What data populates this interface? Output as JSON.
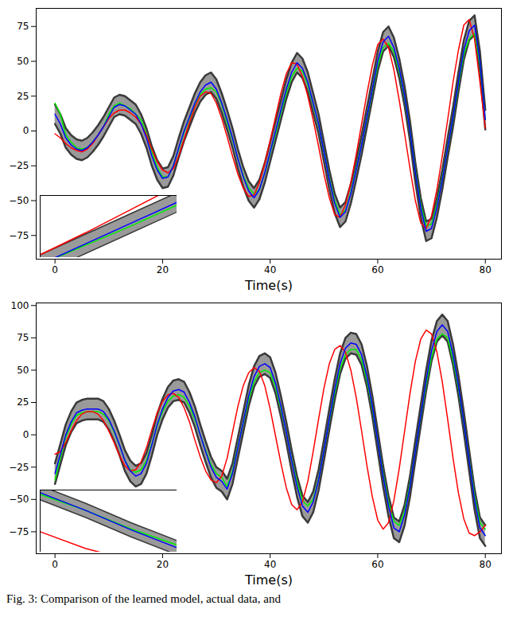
{
  "caption": "Fig. 3: Comparison of the learned model, actual data, and",
  "chart_data": [
    {
      "type": "line",
      "xlabel": "Time(s)",
      "xlim": [
        -3.5,
        83
      ],
      "xticks": [
        0,
        20,
        40,
        60,
        80
      ],
      "ylim": [
        -92,
        88
      ],
      "yticks": [
        -75,
        -50,
        -25,
        0,
        25,
        50,
        75
      ],
      "grid": false,
      "inset": {
        "xlim": [
          39,
          42
        ],
        "ylim": [
          -25,
          20
        ],
        "tick_labels": false
      },
      "x": [
        0,
        1,
        2,
        3,
        4,
        5,
        6,
        7,
        8,
        9,
        10,
        11,
        12,
        13,
        14,
        15,
        16,
        17,
        18,
        19,
        20,
        21,
        22,
        23,
        24,
        25,
        26,
        27,
        28,
        29,
        30,
        31,
        32,
        33,
        34,
        35,
        36,
        37,
        38,
        39,
        40,
        41,
        42,
        43,
        44,
        45,
        46,
        47,
        48,
        49,
        50,
        51,
        52,
        53,
        54,
        55,
        56,
        57,
        58,
        59,
        60,
        61,
        62,
        63,
        64,
        65,
        66,
        67,
        68,
        69,
        70,
        71,
        72,
        73,
        74,
        75,
        76,
        77,
        78,
        79,
        80
      ],
      "series": [
        {
          "type": "band",
          "color": "#9a9a9a",
          "lower": [
            5,
            -2,
            -12,
            -17,
            -20,
            -21,
            -19,
            -15,
            -10,
            -4,
            3,
            10,
            12,
            11,
            8,
            5,
            -2,
            -12,
            -25,
            -35,
            -41,
            -40,
            -32,
            -19,
            -7,
            3,
            13,
            21,
            26,
            28,
            23,
            13,
            1,
            -12,
            -27,
            -40,
            -50,
            -55,
            -49,
            -37,
            -22,
            -7,
            8,
            23,
            35,
            42,
            38,
            28,
            13,
            -2,
            -22,
            -42,
            -59,
            -69,
            -65,
            -52,
            -35,
            -17,
            3,
            23,
            43,
            57,
            61,
            53,
            38,
            18,
            -7,
            -37,
            -62,
            -79,
            -77,
            -62,
            -42,
            -19,
            3,
            28,
            51,
            65,
            69,
            43,
            1
          ],
          "upper": [
            19,
            12,
            2,
            -3,
            -6,
            -7,
            -5,
            -1,
            4,
            10,
            17,
            24,
            26,
            25,
            22,
            19,
            12,
            2,
            -11,
            -21,
            -27,
            -26,
            -18,
            -5,
            7,
            17,
            27,
            35,
            40,
            42,
            37,
            27,
            15,
            2,
            -13,
            -26,
            -36,
            -41,
            -35,
            -23,
            -8,
            7,
            22,
            37,
            49,
            56,
            52,
            42,
            27,
            12,
            -8,
            -28,
            -45,
            -55,
            -51,
            -38,
            -21,
            -3,
            17,
            37,
            57,
            71,
            75,
            67,
            52,
            32,
            7,
            -23,
            -48,
            -65,
            -63,
            -48,
            -28,
            -5,
            17,
            42,
            65,
            79,
            83,
            57,
            15
          ]
        },
        {
          "type": "line",
          "color": "#00ee00",
          "values": [
            20,
            12,
            -3,
            -8,
            -12,
            -13,
            -12,
            -8,
            -3,
            3,
            12,
            18,
            20,
            18,
            16,
            12,
            8,
            -2,
            -15,
            -26,
            -33,
            -33,
            -25,
            -13,
            -1,
            9,
            18,
            26,
            30,
            31,
            28,
            19,
            6,
            -6,
            -20,
            -32,
            -41,
            -45,
            -42,
            -30,
            -16,
            -2,
            13,
            27,
            39,
            45,
            43,
            33,
            19,
            4,
            -15,
            -34,
            -50,
            -60,
            -57,
            -44,
            -27,
            -10,
            9,
            29,
            47,
            60,
            63,
            57,
            43,
            24,
            0,
            -29,
            -53,
            -68,
            -67,
            -53,
            -34,
            -12,
            9,
            33,
            55,
            66,
            70,
            48,
            8
          ]
        },
        {
          "type": "line",
          "color": "#ff0000",
          "values": [
            -2,
            -5,
            -9,
            -12,
            -14,
            -15,
            -13,
            -9,
            -3,
            3,
            9,
            13,
            15,
            15,
            13,
            10,
            5,
            -3,
            -13,
            -22,
            -28,
            -30,
            -27,
            -18,
            -6,
            6,
            17,
            25,
            28,
            27,
            20,
            9,
            -4,
            -18,
            -31,
            -41,
            -47,
            -46,
            -37,
            -23,
            -7,
            10,
            27,
            41,
            49,
            48,
            39,
            25,
            8,
            -11,
            -31,
            -48,
            -60,
            -62,
            -53,
            -37,
            -17,
            5,
            27,
            47,
            62,
            66,
            60,
            44,
            22,
            -2,
            -27,
            -50,
            -66,
            -70,
            -61,
            -42,
            -18,
            8,
            35,
            58,
            76,
            80,
            66,
            35,
            2
          ]
        },
        {
          "type": "line",
          "color": "#0000ff",
          "values": [
            12,
            5,
            -5,
            -10,
            -13,
            -14,
            -12,
            -8,
            -3,
            3,
            10,
            17,
            19,
            18,
            15,
            12,
            5,
            -5,
            -18,
            -28,
            -34,
            -33,
            -25,
            -12,
            0,
            10,
            20,
            28,
            33,
            35,
            30,
            20,
            8,
            -5,
            -20,
            -33,
            -43,
            -48,
            -42,
            -30,
            -15,
            0,
            15,
            30,
            42,
            49,
            45,
            35,
            20,
            5,
            -15,
            -35,
            -52,
            -62,
            -58,
            -45,
            -28,
            -10,
            10,
            30,
            50,
            64,
            68,
            60,
            45,
            25,
            0,
            -30,
            -55,
            -72,
            -70,
            -55,
            -35,
            -12,
            10,
            35,
            58,
            72,
            76,
            50,
            8
          ]
        }
      ]
    },
    {
      "type": "line",
      "xlabel": "Time(s)",
      "xlim": [
        -3.5,
        83
      ],
      "xticks": [
        0,
        20,
        40,
        60,
        80
      ],
      "ylim": [
        -92,
        102
      ],
      "yticks": [
        -75,
        -50,
        -25,
        0,
        25,
        50,
        75,
        100
      ],
      "grid": false,
      "inset": {
        "xlim": [
          42,
          45
        ],
        "ylim": [
          -45,
          25
        ],
        "tick_labels": false
      },
      "x": [
        0,
        1,
        2,
        3,
        4,
        5,
        6,
        7,
        8,
        9,
        10,
        11,
        12,
        13,
        14,
        15,
        16,
        17,
        18,
        19,
        20,
        21,
        22,
        23,
        24,
        25,
        26,
        27,
        28,
        29,
        30,
        31,
        32,
        33,
        34,
        35,
        36,
        37,
        38,
        39,
        40,
        41,
        42,
        43,
        44,
        45,
        46,
        47,
        48,
        49,
        50,
        51,
        52,
        53,
        54,
        55,
        56,
        57,
        58,
        59,
        60,
        61,
        62,
        63,
        64,
        65,
        66,
        67,
        68,
        69,
        70,
        71,
        72,
        73,
        74,
        75,
        76,
        77,
        78,
        79,
        80
      ],
      "series": [
        {
          "type": "band",
          "color": "#9a9a9a",
          "lower": [
            -38,
            -23,
            -8,
            2,
            9,
            11,
            12,
            12,
            12,
            10,
            4,
            -5,
            -16,
            -28,
            -36,
            -40,
            -38,
            -30,
            -16,
            0,
            12,
            21,
            26,
            27,
            25,
            17,
            6,
            -8,
            -21,
            -33,
            -41,
            -44,
            -50,
            -38,
            -18,
            2,
            22,
            37,
            45,
            47,
            44,
            32,
            14,
            -6,
            -28,
            -48,
            -63,
            -68,
            -60,
            -43,
            -20,
            4,
            27,
            47,
            59,
            63,
            62,
            54,
            37,
            14,
            -13,
            -40,
            -63,
            -80,
            -83,
            -70,
            -48,
            -20,
            7,
            34,
            57,
            72,
            77,
            72,
            54,
            30,
            2,
            -28,
            -58,
            -80,
            -86
          ],
          "upper": [
            -22,
            -7,
            8,
            18,
            25,
            27,
            28,
            28,
            28,
            26,
            20,
            11,
            0,
            -12,
            -20,
            -24,
            -22,
            -14,
            0,
            16,
            28,
            37,
            42,
            43,
            41,
            33,
            22,
            8,
            -5,
            -17,
            -25,
            -28,
            -34,
            -22,
            -2,
            18,
            38,
            53,
            61,
            63,
            60,
            48,
            30,
            10,
            -12,
            -32,
            -47,
            -52,
            -44,
            -27,
            -4,
            20,
            43,
            63,
            75,
            79,
            78,
            70,
            53,
            30,
            3,
            -24,
            -47,
            -64,
            -67,
            -54,
            -32,
            -4,
            23,
            50,
            73,
            88,
            93,
            88,
            70,
            46,
            18,
            -12,
            -42,
            -64,
            -70
          ]
        },
        {
          "type": "line",
          "color": "#00ee00",
          "values": [
            -35,
            -18,
            -2,
            8,
            15,
            17,
            18,
            18,
            18,
            16,
            11,
            2,
            -8,
            -20,
            -27,
            -29,
            -27,
            -20,
            -7,
            7,
            18,
            26,
            30,
            31,
            29,
            22,
            12,
            0,
            -12,
            -23,
            -30,
            -33,
            -40,
            -28,
            -9,
            9,
            27,
            41,
            48,
            50,
            48,
            37,
            20,
            2,
            -19,
            -37,
            -51,
            -55,
            -50,
            -34,
            -12,
            11,
            32,
            51,
            62,
            66,
            66,
            58,
            42,
            20,
            -5,
            -30,
            -52,
            -67,
            -70,
            -59,
            -38,
            -12,
            14,
            39,
            60,
            74,
            78,
            75,
            58,
            36,
            9,
            -19,
            -47,
            -68,
            -73
          ]
        },
        {
          "type": "line",
          "color": "#ff0000",
          "values": [
            -15,
            -13,
            -6,
            3,
            11,
            16,
            18,
            18,
            16,
            11,
            3,
            -6,
            -16,
            -24,
            -28,
            -27,
            -21,
            -10,
            4,
            17,
            26,
            31,
            32,
            29,
            21,
            10,
            -4,
            -17,
            -28,
            -35,
            -37,
            -32,
            -18,
            2,
            22,
            38,
            48,
            52,
            49,
            38,
            20,
            -1,
            -22,
            -41,
            -54,
            -58,
            -52,
            -36,
            -13,
            12,
            36,
            55,
            66,
            69,
            64,
            50,
            29,
            3,
            -24,
            -48,
            -66,
            -73,
            -68,
            -51,
            -26,
            3,
            32,
            57,
            74,
            81,
            78,
            64,
            41,
            12,
            -18,
            -45,
            -65,
            -76,
            -78,
            -75,
            -70
          ]
        },
        {
          "type": "line",
          "color": "#0000ff",
          "values": [
            -30,
            -15,
            0,
            10,
            17,
            19,
            20,
            20,
            20,
            18,
            12,
            3,
            -8,
            -20,
            -28,
            -32,
            -30,
            -22,
            -8,
            8,
            20,
            29,
            34,
            35,
            33,
            25,
            14,
            0,
            -13,
            -25,
            -33,
            -36,
            -42,
            -30,
            -10,
            10,
            30,
            45,
            53,
            55,
            52,
            40,
            22,
            2,
            -20,
            -40,
            -55,
            -60,
            -52,
            -35,
            -12,
            12,
            35,
            55,
            67,
            71,
            70,
            62,
            45,
            22,
            -5,
            -32,
            -55,
            -72,
            -75,
            -62,
            -40,
            -12,
            15,
            42,
            65,
            80,
            85,
            80,
            62,
            38,
            10,
            -20,
            -50,
            -72,
            -78
          ]
        }
      ]
    }
  ]
}
